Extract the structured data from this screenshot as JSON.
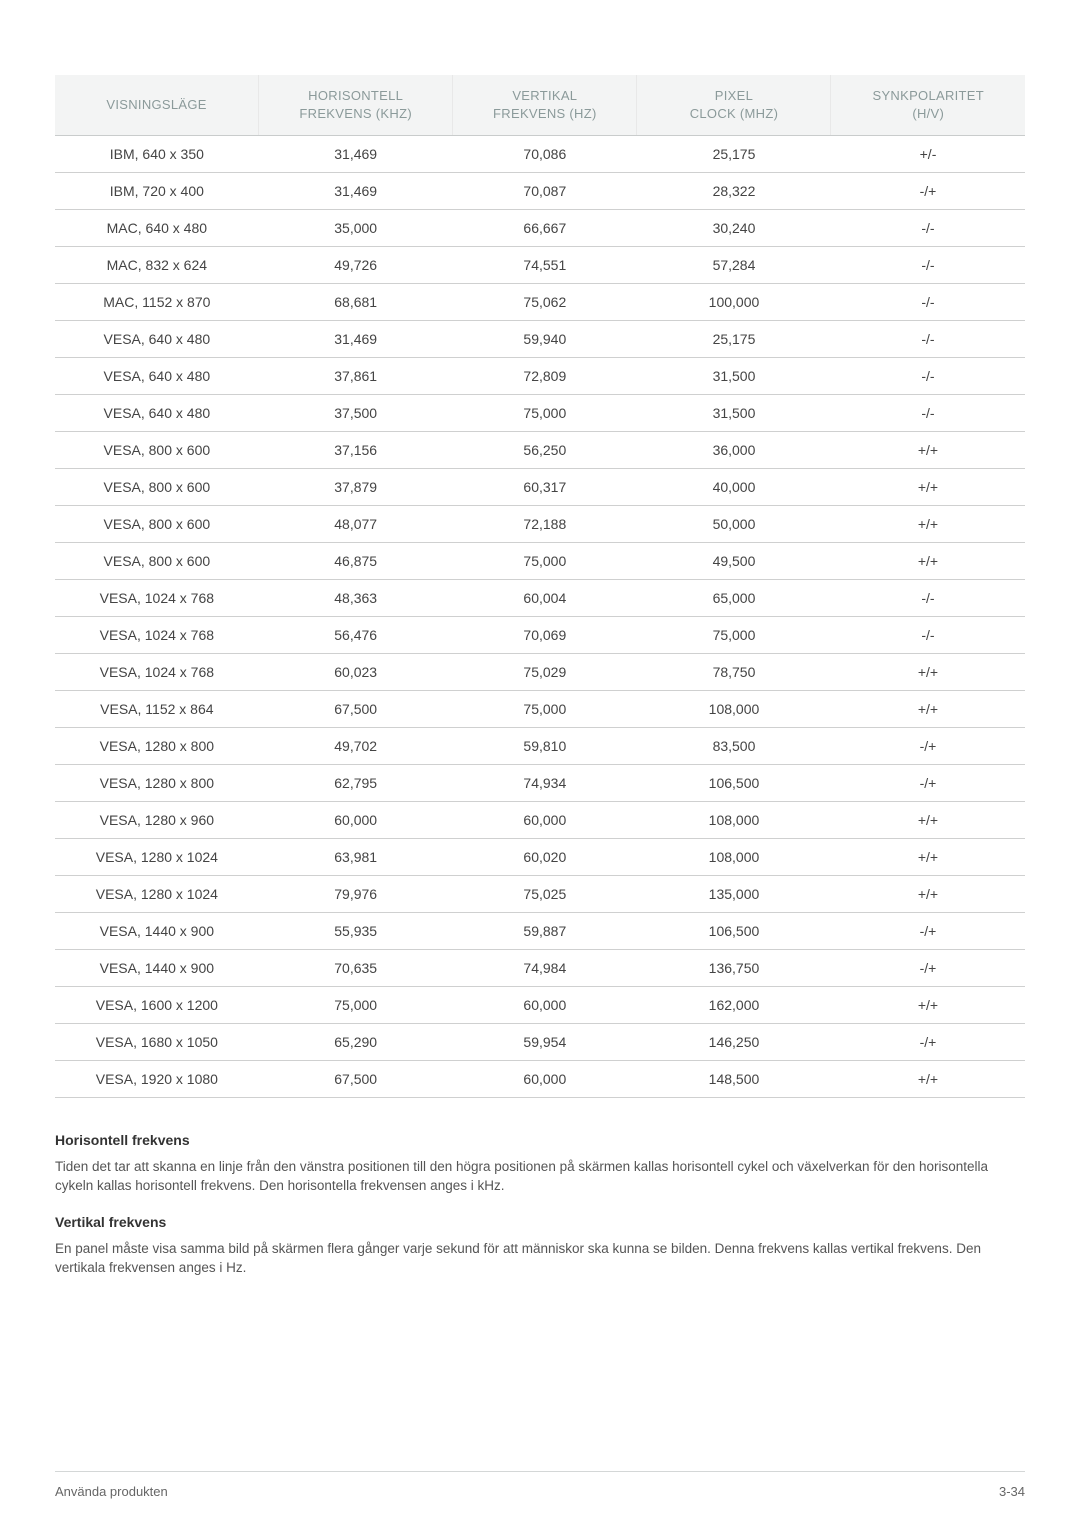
{
  "table": {
    "columns": [
      "VISNINGSLÄGE",
      "HORISONTELL FREKVENS (KHZ)",
      "VERTIKAL FREKVENS (HZ)",
      "PIXEL CLOCK (MHZ)",
      "SYNKPOLARITET (H/V)"
    ],
    "header_color": "#8b9a9a",
    "header_bg": "#f3f4f4",
    "border_color": "#cfd0d0",
    "text_color": "#444444",
    "col_widths": [
      "21%",
      "20%",
      "19%",
      "20%",
      "20%"
    ],
    "rows": [
      [
        "IBM, 640 x 350",
        "31,469",
        "70,086",
        "25,175",
        "+/-"
      ],
      [
        "IBM, 720 x 400",
        "31,469",
        "70,087",
        "28,322",
        "-/+"
      ],
      [
        "MAC, 640 x 480",
        "35,000",
        "66,667",
        "30,240",
        "-/-"
      ],
      [
        "MAC, 832 x 624",
        "49,726",
        "74,551",
        "57,284",
        "-/-"
      ],
      [
        "MAC, 1152 x 870",
        "68,681",
        "75,062",
        "100,000",
        "-/-"
      ],
      [
        "VESA, 640 x 480",
        "31,469",
        "59,940",
        "25,175",
        "-/-"
      ],
      [
        "VESA, 640 x 480",
        "37,861",
        "72,809",
        "31,500",
        "-/-"
      ],
      [
        "VESA, 640 x 480",
        "37,500",
        "75,000",
        "31,500",
        "-/-"
      ],
      [
        "VESA, 800 x 600",
        "37,156",
        "56,250",
        "36,000",
        "+/+"
      ],
      [
        "VESA, 800 x 600",
        "37,879",
        "60,317",
        "40,000",
        "+/+"
      ],
      [
        "VESA, 800 x 600",
        "48,077",
        "72,188",
        "50,000",
        "+/+"
      ],
      [
        "VESA, 800 x 600",
        "46,875",
        "75,000",
        "49,500",
        "+/+"
      ],
      [
        "VESA, 1024 x 768",
        "48,363",
        "60,004",
        "65,000",
        "-/-"
      ],
      [
        "VESA, 1024 x 768",
        "56,476",
        "70,069",
        "75,000",
        "-/-"
      ],
      [
        "VESA, 1024 x 768",
        "60,023",
        "75,029",
        "78,750",
        "+/+"
      ],
      [
        "VESA, 1152 x 864",
        "67,500",
        "75,000",
        "108,000",
        "+/+"
      ],
      [
        "VESA, 1280 x 800",
        "49,702",
        "59,810",
        "83,500",
        "-/+"
      ],
      [
        "VESA, 1280 x 800",
        "62,795",
        "74,934",
        "106,500",
        "-/+"
      ],
      [
        "VESA, 1280 x 960",
        "60,000",
        "60,000",
        "108,000",
        "+/+"
      ],
      [
        "VESA, 1280 x 1024",
        "63,981",
        "60,020",
        "108,000",
        "+/+"
      ],
      [
        "VESA, 1280 x 1024",
        "79,976",
        "75,025",
        "135,000",
        "+/+"
      ],
      [
        "VESA, 1440 x 900",
        "55,935",
        "59,887",
        "106,500",
        "-/+"
      ],
      [
        "VESA, 1440 x 900",
        "70,635",
        "74,984",
        "136,750",
        "-/+"
      ],
      [
        "VESA, 1600 x 1200",
        "75,000",
        "60,000",
        "162,000",
        "+/+"
      ],
      [
        "VESA, 1680 x 1050",
        "65,290",
        "59,954",
        "146,250",
        "-/+"
      ],
      [
        "VESA, 1920 x 1080",
        "67,500",
        "60,000",
        "148,500",
        "+/+"
      ]
    ]
  },
  "sections": [
    {
      "title": "Horisontell frekvens",
      "body": "Tiden det tar att skanna en linje från den vänstra positionen till den högra positionen på skärmen kallas horisontell cykel och växelverkan för den horisontella cykeln kallas horisontell frekvens. Den horisontella frekvensen anges i kHz."
    },
    {
      "title": "Vertikal frekvens",
      "body": "En panel måste visa samma bild på skärmen flera gånger varje sekund för att människor ska kunna se bilden. Denna frekvens kallas vertikal frekvens. Den vertikala frekvensen anges i Hz."
    }
  ],
  "footer": {
    "left": "Använda produkten",
    "right": "3-34"
  }
}
